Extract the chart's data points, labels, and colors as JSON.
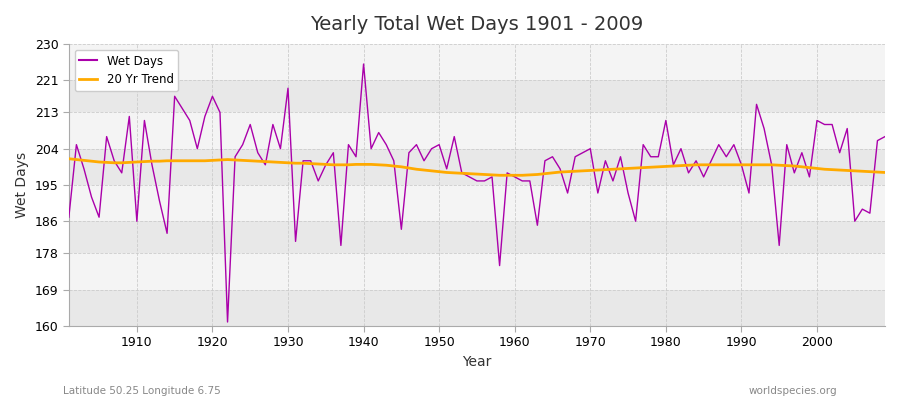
{
  "title": "Yearly Total Wet Days 1901 - 2009",
  "xlabel": "Year",
  "ylabel": "Wet Days",
  "bottom_left_text": "Latitude 50.25 Longitude 6.75",
  "bottom_right_text": "worldspecies.org",
  "wet_days_color": "#aa00aa",
  "trend_color": "#ffaa00",
  "figure_bg": "#ffffff",
  "plot_bg": "#f0f0f0",
  "band_color_dark": "#e8e8e8",
  "band_color_light": "#f4f4f4",
  "ylim": [
    160,
    230
  ],
  "yticks": [
    160,
    169,
    178,
    186,
    195,
    204,
    213,
    221,
    230
  ],
  "xlim": [
    1901,
    2009
  ],
  "xticks": [
    1910,
    1920,
    1930,
    1940,
    1950,
    1960,
    1970,
    1980,
    1990,
    2000
  ],
  "years": [
    1901,
    1902,
    1903,
    1904,
    1905,
    1906,
    1907,
    1908,
    1909,
    1910,
    1911,
    1912,
    1913,
    1914,
    1915,
    1916,
    1917,
    1918,
    1919,
    1920,
    1921,
    1922,
    1923,
    1924,
    1925,
    1926,
    1927,
    1928,
    1929,
    1930,
    1931,
    1932,
    1933,
    1934,
    1935,
    1936,
    1937,
    1938,
    1939,
    1940,
    1941,
    1942,
    1943,
    1944,
    1945,
    1946,
    1947,
    1948,
    1949,
    1950,
    1951,
    1952,
    1953,
    1954,
    1955,
    1956,
    1957,
    1958,
    1959,
    1960,
    1961,
    1962,
    1963,
    1964,
    1965,
    1966,
    1967,
    1968,
    1969,
    1970,
    1971,
    1972,
    1973,
    1974,
    1975,
    1976,
    1977,
    1978,
    1979,
    1980,
    1981,
    1982,
    1983,
    1984,
    1985,
    1986,
    1987,
    1988,
    1989,
    1990,
    1991,
    1992,
    1993,
    1994,
    1995,
    1996,
    1997,
    1998,
    1999,
    2000,
    2001,
    2002,
    2003,
    2004,
    2005,
    2006,
    2007,
    2008,
    2009
  ],
  "wet_days": [
    187,
    205,
    199,
    192,
    187,
    207,
    201,
    198,
    212,
    186,
    211,
    200,
    191,
    183,
    217,
    214,
    211,
    204,
    212,
    217,
    213,
    161,
    202,
    205,
    210,
    203,
    200,
    210,
    204,
    219,
    181,
    201,
    201,
    196,
    200,
    203,
    180,
    205,
    202,
    225,
    204,
    208,
    205,
    201,
    184,
    203,
    205,
    201,
    204,
    205,
    199,
    207,
    198,
    197,
    196,
    196,
    197,
    175,
    198,
    197,
    196,
    196,
    185,
    201,
    202,
    199,
    193,
    202,
    203,
    204,
    193,
    201,
    196,
    202,
    193,
    186,
    205,
    202,
    202,
    211,
    200,
    204,
    198,
    201,
    197,
    201,
    205,
    202,
    205,
    200,
    193,
    215,
    209,
    200,
    180,
    205,
    198,
    203,
    197,
    211,
    210,
    210,
    203,
    209,
    186,
    189,
    188,
    206,
    207
  ],
  "trend": [
    201.5,
    201.3,
    201.1,
    200.9,
    200.7,
    200.6,
    200.5,
    200.5,
    200.6,
    200.7,
    200.8,
    200.9,
    200.9,
    201.0,
    201.0,
    201.0,
    201.0,
    201.0,
    201.0,
    201.1,
    201.2,
    201.3,
    201.2,
    201.1,
    201.0,
    200.9,
    200.8,
    200.7,
    200.6,
    200.5,
    200.4,
    200.4,
    200.3,
    200.2,
    200.1,
    200.0,
    200.0,
    200.0,
    200.1,
    200.1,
    200.1,
    200.0,
    199.9,
    199.7,
    199.5,
    199.2,
    198.9,
    198.7,
    198.5,
    198.3,
    198.1,
    198.0,
    197.9,
    197.8,
    197.7,
    197.6,
    197.5,
    197.4,
    197.4,
    197.4,
    197.4,
    197.5,
    197.6,
    197.8,
    198.0,
    198.2,
    198.3,
    198.4,
    198.5,
    198.6,
    198.7,
    198.8,
    198.9,
    199.0,
    199.1,
    199.2,
    199.3,
    199.4,
    199.5,
    199.6,
    199.7,
    199.8,
    199.9,
    200.0,
    200.0,
    200.0,
    200.0,
    200.0,
    200.0,
    200.0,
    200.0,
    200.0,
    200.0,
    200.0,
    199.9,
    199.8,
    199.7,
    199.5,
    199.3,
    199.1,
    198.9,
    198.8,
    198.7,
    198.6,
    198.5,
    198.4,
    198.3,
    198.2,
    198.1
  ]
}
